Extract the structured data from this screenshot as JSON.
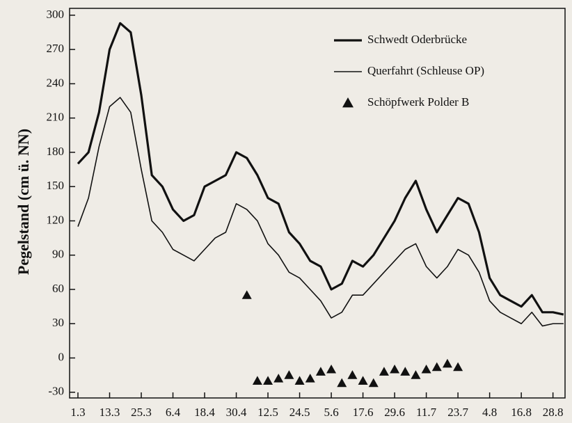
{
  "chart_data": {
    "type": "line",
    "y_label": "Pegelstand (cm ü. NN)",
    "categories": [
      "1.3",
      null,
      null,
      "13.3",
      null,
      null,
      "25.3",
      null,
      null,
      "6.4",
      null,
      null,
      "18.4",
      null,
      null,
      "30.4",
      null,
      null,
      "12.5",
      null,
      null,
      "24.5",
      null,
      null,
      "5.6",
      null,
      null,
      "17.6",
      null,
      null,
      "29.6",
      null,
      null,
      "11.7",
      null,
      null,
      "23.7",
      null,
      null,
      "4.8",
      null,
      null,
      "16.8",
      null,
      null,
      "28.8",
      null
    ],
    "series": [
      {
        "name": "Schwedt Oderbrücke",
        "color": "#111111",
        "width": 3.2,
        "marker": "none",
        "values": [
          170,
          180,
          215,
          270,
          293,
          285,
          230,
          160,
          150,
          130,
          120,
          125,
          150,
          155,
          160,
          180,
          175,
          160,
          140,
          135,
          110,
          100,
          85,
          80,
          60,
          65,
          85,
          80,
          90,
          105,
          120,
          140,
          155,
          130,
          110,
          125,
          140,
          135,
          110,
          70,
          55,
          50,
          45,
          55,
          40,
          40,
          38
        ]
      },
      {
        "name": "Querfahrt (Schleuse OP)",
        "color": "#111111",
        "width": 1.6,
        "marker": "none",
        "values": [
          115,
          140,
          185,
          220,
          228,
          215,
          165,
          120,
          110,
          95,
          90,
          85,
          95,
          105,
          110,
          135,
          130,
          120,
          100,
          90,
          75,
          70,
          60,
          50,
          35,
          40,
          55,
          55,
          65,
          75,
          85,
          95,
          100,
          80,
          70,
          80,
          95,
          90,
          75,
          50,
          40,
          35,
          30,
          40,
          28,
          30,
          30
        ]
      },
      {
        "name": "Schöpfwerk Polder B",
        "color": "#111111",
        "width": 0,
        "marker": "triangle",
        "values": [
          null,
          null,
          null,
          null,
          null,
          null,
          null,
          null,
          null,
          null,
          null,
          null,
          null,
          null,
          null,
          null,
          55,
          -20,
          -20,
          -18,
          -15,
          -20,
          -18,
          -12,
          -10,
          -22,
          -15,
          -20,
          -22,
          -12,
          -10,
          -12,
          -15,
          -10,
          -8,
          -5,
          -8,
          null,
          null,
          null,
          null,
          null,
          null,
          null,
          null,
          null,
          null
        ]
      }
    ],
    "ylim": [
      -35,
      306
    ],
    "yticks": [
      -30,
      0,
      30,
      60,
      90,
      120,
      150,
      180,
      210,
      240,
      270,
      300
    ],
    "legend": "upper-right"
  }
}
